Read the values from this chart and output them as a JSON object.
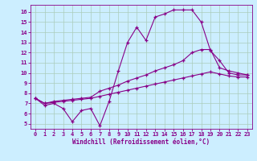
{
  "xlabel": "Windchill (Refroidissement éolien,°C)",
  "bg_color": "#cceeff",
  "line_color": "#880088",
  "grid_color": "#aaccbb",
  "xlim": [
    -0.5,
    23.5
  ],
  "ylim": [
    4.5,
    16.7
  ],
  "xticks": [
    0,
    1,
    2,
    3,
    4,
    5,
    6,
    7,
    8,
    9,
    10,
    11,
    12,
    13,
    14,
    15,
    16,
    17,
    18,
    19,
    20,
    21,
    22,
    23
  ],
  "yticks": [
    5,
    6,
    7,
    8,
    9,
    10,
    11,
    12,
    13,
    14,
    15,
    16
  ],
  "line1_x": [
    0,
    1,
    2,
    3,
    4,
    5,
    6,
    7,
    8,
    9,
    10,
    11,
    12,
    13,
    14,
    15,
    16,
    17,
    18,
    19,
    20,
    21,
    22,
    23
  ],
  "line1_y": [
    7.5,
    6.8,
    7.0,
    6.5,
    5.2,
    6.3,
    6.5,
    4.8,
    7.2,
    10.2,
    13.0,
    14.5,
    13.2,
    15.5,
    15.8,
    16.2,
    16.2,
    16.2,
    15.0,
    12.2,
    11.2,
    10.0,
    9.8,
    9.8
  ],
  "line2_x": [
    0,
    1,
    2,
    3,
    4,
    5,
    6,
    7,
    8,
    9,
    10,
    11,
    12,
    13,
    14,
    15,
    16,
    17,
    18,
    19,
    20,
    21,
    22,
    23
  ],
  "line2_y": [
    7.5,
    7.0,
    7.2,
    7.3,
    7.4,
    7.5,
    7.6,
    8.2,
    8.5,
    8.8,
    9.2,
    9.5,
    9.8,
    10.2,
    10.5,
    10.8,
    11.2,
    12.0,
    12.3,
    12.3,
    10.5,
    10.2,
    10.0,
    9.8
  ],
  "line3_x": [
    0,
    1,
    2,
    3,
    4,
    5,
    6,
    7,
    8,
    9,
    10,
    11,
    12,
    13,
    14,
    15,
    16,
    17,
    18,
    19,
    20,
    21,
    22,
    23
  ],
  "line3_y": [
    7.5,
    7.0,
    7.1,
    7.2,
    7.3,
    7.4,
    7.5,
    7.7,
    7.9,
    8.1,
    8.3,
    8.5,
    8.7,
    8.9,
    9.1,
    9.3,
    9.5,
    9.7,
    9.9,
    10.1,
    9.9,
    9.7,
    9.6,
    9.6
  ]
}
